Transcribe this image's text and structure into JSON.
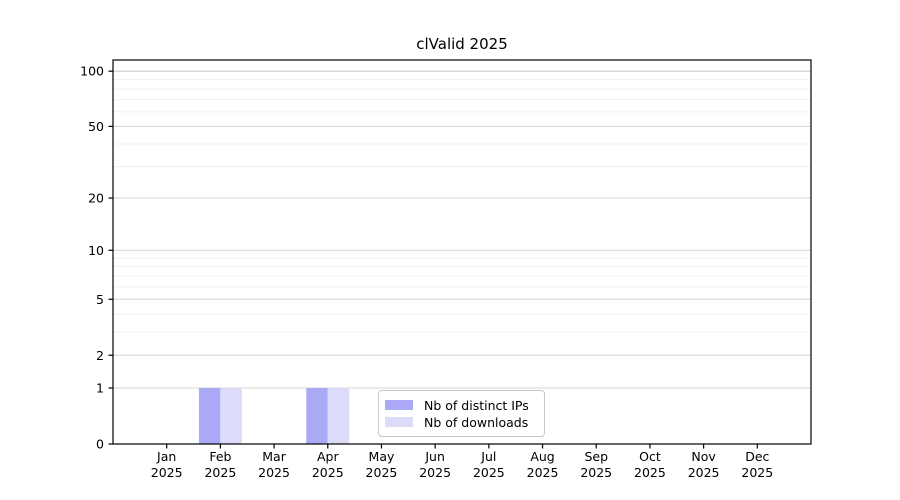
{
  "title": "clValid 2025",
  "chart_data": {
    "type": "bar",
    "title": "clValid 2025",
    "categories": [
      "Jan",
      "Feb",
      "Mar",
      "Apr",
      "May",
      "Jun",
      "Jul",
      "Aug",
      "Sep",
      "Oct",
      "Nov",
      "Dec"
    ],
    "category_year": "2025",
    "series": [
      {
        "name": "Nb of distinct IPs",
        "color": "#a9a9f5",
        "values": [
          0,
          1,
          0,
          1,
          0,
          0,
          0,
          0,
          0,
          0,
          0,
          0
        ]
      },
      {
        "name": "Nb of downloads",
        "color": "#dcdcfa",
        "values": [
          0,
          1,
          0,
          1,
          0,
          0,
          0,
          0,
          0,
          0,
          0,
          0
        ]
      }
    ],
    "y_axis": {
      "scale": "log1p",
      "ticks": [
        0,
        1,
        2,
        5,
        10,
        20,
        50,
        100
      ],
      "minor_ticks": [
        3,
        4,
        6,
        7,
        8,
        9,
        30,
        40,
        60,
        70,
        80,
        90
      ],
      "ylim": [
        0,
        115
      ]
    },
    "grid": true,
    "legend_position": "bottom-center",
    "colors": {
      "major_grid": "#d4d4d4",
      "minor_grid": "#f0f0f0",
      "axis": "#000000",
      "text": "#000000",
      "top_grid": "#c4c4c4"
    }
  }
}
